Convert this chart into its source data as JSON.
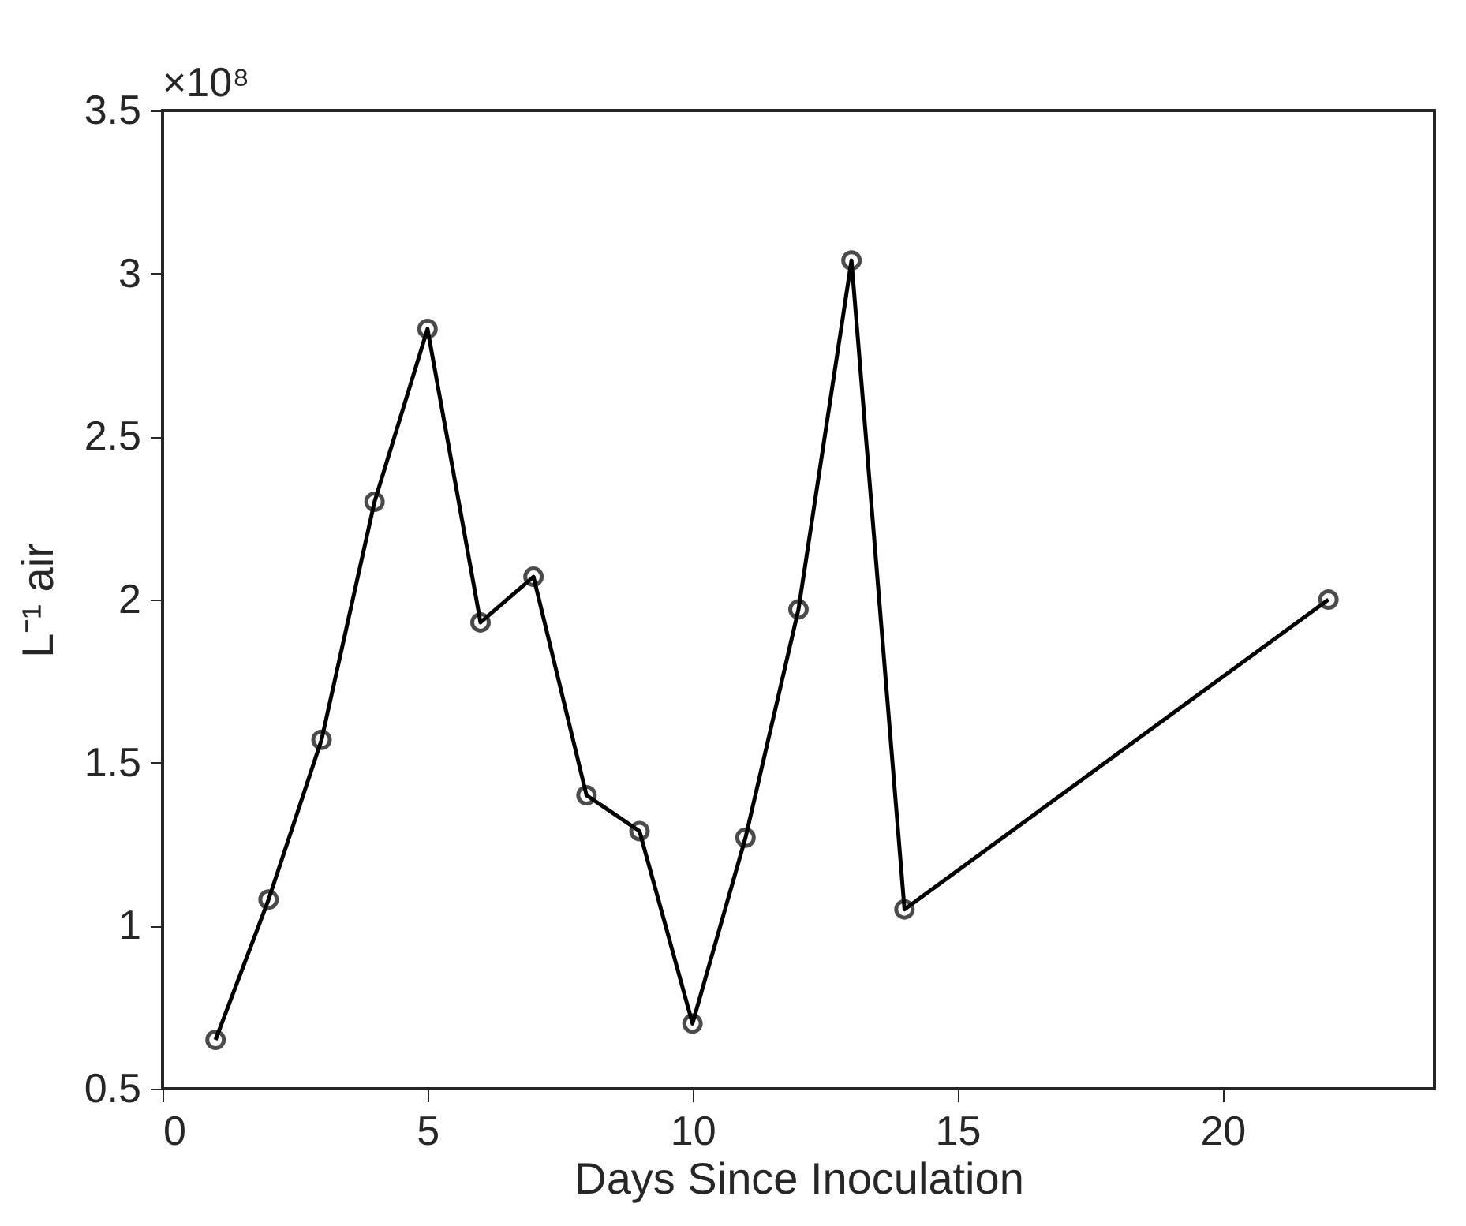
{
  "chart_data": {
    "type": "line",
    "xlabel": "Days Since Inoculation",
    "ylabel": "L⁻¹ air",
    "annotations": [
      "×10⁸"
    ],
    "x": [
      1,
      2,
      3,
      4,
      5,
      6,
      7,
      8,
      9,
      10,
      11,
      12,
      13,
      14,
      22
    ],
    "series": [
      {
        "color": "#000000",
        "values": [
          0.65,
          1.08,
          1.57,
          2.3,
          2.83,
          1.93,
          2.07,
          1.4,
          1.29,
          0.7,
          1.27,
          1.97,
          3.04,
          1.05,
          2.0
        ]
      }
    ],
    "xlim": [
      0,
      24
    ],
    "xticks": [
      0,
      5,
      10,
      15,
      20
    ],
    "ylim": [
      0.5,
      3.5
    ],
    "yticks": [
      0.5,
      1,
      1.5,
      2,
      2.5,
      3,
      3.5
    ],
    "grid": false,
    "marker": "circle",
    "line_style": "solid"
  }
}
